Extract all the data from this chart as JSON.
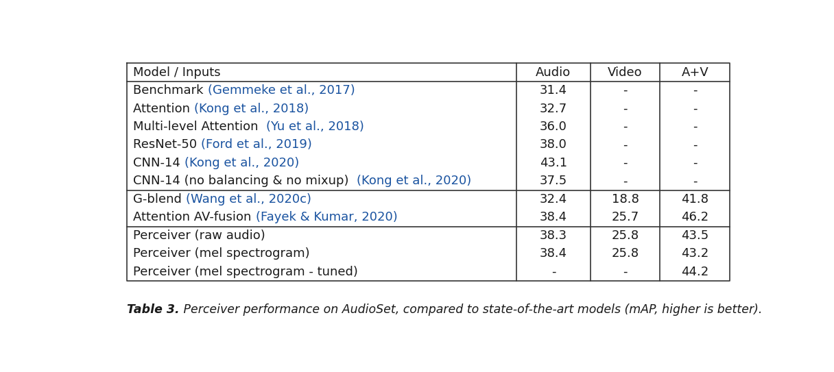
{
  "caption_bold": "Table 3.",
  "caption_rest": " Perceiver performance on AudioSet, compared to state-of-the-art models (mAP, higher is better).",
  "headers": [
    "Model / Inputs",
    "Audio",
    "Video",
    "A+V"
  ],
  "groups": [
    {
      "rows": [
        {
          "model_black": "Benchmark ",
          "model_blue": "(Gemmeke et al., 2017)",
          "audio": "31.4",
          "video": "-",
          "av": "-"
        },
        {
          "model_black": "Attention ",
          "model_blue": "(Kong et al., 2018)",
          "audio": "32.7",
          "video": "-",
          "av": "-"
        },
        {
          "model_black": "Multi-level Attention  ",
          "model_blue": "(Yu et al., 2018)",
          "audio": "36.0",
          "video": "-",
          "av": "-"
        },
        {
          "model_black": "ResNet-50 ",
          "model_blue": "(Ford et al., 2019)",
          "audio": "38.0",
          "video": "-",
          "av": "-"
        },
        {
          "model_black": "CNN-14 ",
          "model_blue": "(Kong et al., 2020)",
          "audio": "43.1",
          "video": "-",
          "av": "-"
        },
        {
          "model_black": "CNN-14 (no balancing & no mixup)  ",
          "model_blue": "(Kong et al., 2020)",
          "audio": "37.5",
          "video": "-",
          "av": "-"
        }
      ]
    },
    {
      "rows": [
        {
          "model_black": "G-blend ",
          "model_blue": "(Wang et al., 2020c)",
          "audio": "32.4",
          "video": "18.8",
          "av": "41.8"
        },
        {
          "model_black": "Attention AV-fusion ",
          "model_blue": "(Fayek & Kumar, 2020)",
          "audio": "38.4",
          "video": "25.7",
          "av": "46.2"
        }
      ]
    },
    {
      "rows": [
        {
          "model_black": "Perceiver (raw audio)",
          "model_blue": "",
          "audio": "38.3",
          "video": "25.8",
          "av": "43.5"
        },
        {
          "model_black": "Perceiver (mel spectrogram)",
          "model_blue": "",
          "audio": "38.4",
          "video": "25.8",
          "av": "43.2"
        },
        {
          "model_black": "Perceiver (mel spectrogram - tuned)",
          "model_blue": "",
          "audio": "-",
          "video": "-",
          "av": "44.2"
        }
      ]
    }
  ],
  "bg_color": "#ffffff",
  "text_color_black": "#1a1a1a",
  "text_color_blue": "#1a53a0",
  "border_color": "#333333",
  "font_size": 13.0
}
